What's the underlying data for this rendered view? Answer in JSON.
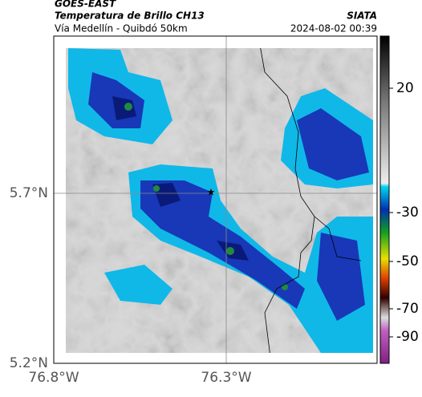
{
  "header": {
    "source": "GOES-EAST",
    "title": "Temperatura de Brillo CH13",
    "subtitle": "Vía Medellín - Quibdó 50km",
    "agency": "SIATA",
    "datetime": "2024-08-02 00:39"
  },
  "map": {
    "lat_labels": [
      "5.7°N",
      "5.2°N"
    ],
    "lon_labels": [
      "76.8°W",
      "76.3°W"
    ]
  },
  "colorbar": {
    "ticks": [
      20,
      -30,
      -50,
      -70,
      -90
    ]
  }
}
